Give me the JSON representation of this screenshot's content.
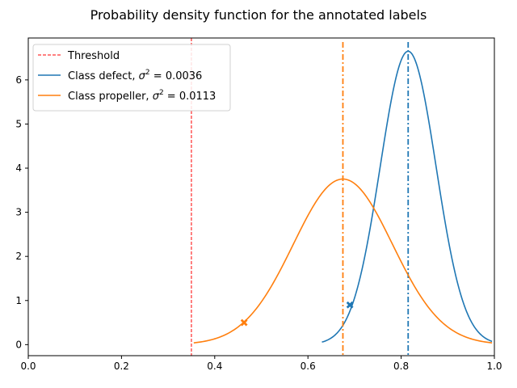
{
  "chart_data": {
    "type": "line",
    "title": "Probability density function for the annotated labels",
    "xlabel": "",
    "ylabel": "",
    "xlim": [
      0.0,
      1.0
    ],
    "ylim": [
      -0.25,
      6.95
    ],
    "xticks": [
      0.0,
      0.2,
      0.4,
      0.6,
      0.8,
      1.0
    ],
    "xtick_labels": [
      "0.0",
      "0.2",
      "0.4",
      "0.6",
      "0.8",
      "1.0"
    ],
    "yticks": [
      0,
      1,
      2,
      3,
      4,
      5,
      6
    ],
    "ytick_labels": [
      "0",
      "1",
      "2",
      "3",
      "4",
      "5",
      "6"
    ],
    "grid": false,
    "legend_position": "top-left",
    "threshold": {
      "name": "Threshold",
      "x": 0.35,
      "color": "#ff0000",
      "style": "dashed"
    },
    "series": [
      {
        "name": "Class defect, σ² = 0.0036",
        "legend_label": "Class defect, ",
        "legend_math": "0.0036",
        "color": "#1f77b4",
        "mean": 0.815,
        "variance": 0.0036,
        "x_range": [
          0.63,
          0.995
        ],
        "mean_line_x": 0.815,
        "marker": {
          "x": 0.69,
          "y": 0.9
        }
      },
      {
        "name": "Class propeller, σ² = 0.0113",
        "legend_label": "Class propeller, ",
        "legend_math": "0.0113",
        "color": "#ff7f0e",
        "mean": 0.675,
        "variance": 0.0113,
        "x_range": [
          0.355,
          0.995
        ],
        "mean_line_x": 0.675,
        "marker": {
          "x": 0.463,
          "y": 0.5
        }
      }
    ]
  }
}
